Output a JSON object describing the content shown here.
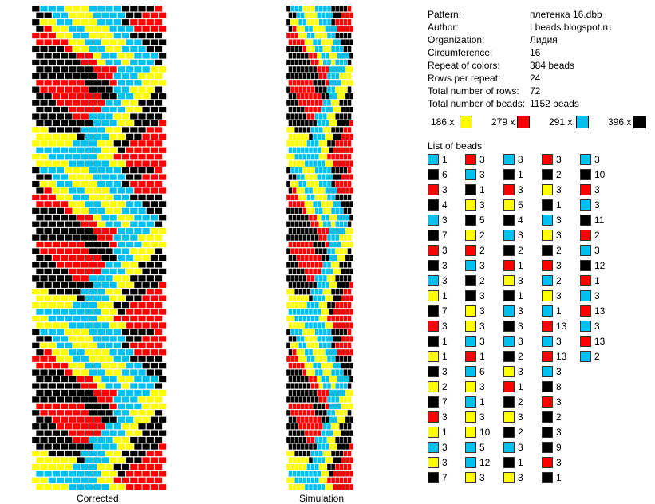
{
  "palette": {
    "Y": "#ffff00",
    "R": "#ff0000",
    "C": "#00c0f0",
    "K": "#000000"
  },
  "info": [
    {
      "label": "Pattern:",
      "value": "плетенка 16.dbb"
    },
    {
      "label": "Author:",
      "value": "Lbeads.blogspot.ru"
    },
    {
      "label": "Organization:",
      "value": "Лидия"
    },
    {
      "label": "Circumference:",
      "value": "16"
    },
    {
      "label": "Repeat of colors:",
      "value": "384 beads"
    },
    {
      "label": "Rows per repeat:",
      "value": "24"
    },
    {
      "label": "Total number of rows:",
      "value": "72"
    },
    {
      "label": "Total number of beads:",
      "value": "1152 beads"
    }
  ],
  "totals": [
    {
      "text": "186 x",
      "color": "Y"
    },
    {
      "text": "279 x",
      "color": "R"
    },
    {
      "text": "291 x",
      "color": "C"
    },
    {
      "text": "396 x",
      "color": "K"
    }
  ],
  "captions": {
    "corrected": "Corrected",
    "simulation": "Simulation"
  },
  "list_title": "List of beads",
  "bead_columns": [
    [
      [
        "C",
        1
      ],
      [
        "K",
        6
      ],
      [
        "R",
        3
      ],
      [
        "K",
        4
      ],
      [
        "C",
        3
      ],
      [
        "K",
        7
      ],
      [
        "R",
        3
      ],
      [
        "K",
        3
      ],
      [
        "C",
        3
      ],
      [
        "Y",
        1
      ],
      [
        "K",
        7
      ],
      [
        "R",
        3
      ],
      [
        "K",
        1
      ],
      [
        "Y",
        1
      ],
      [
        "K",
        3
      ],
      [
        "Y",
        2
      ],
      [
        "K",
        7
      ],
      [
        "R",
        3
      ],
      [
        "Y",
        1
      ],
      [
        "C",
        3
      ],
      [
        "Y",
        3
      ],
      [
        "K",
        7
      ]
    ],
    [
      [
        "R",
        3
      ],
      [
        "C",
        3
      ],
      [
        "K",
        1
      ],
      [
        "Y",
        3
      ],
      [
        "K",
        5
      ],
      [
        "Y",
        2
      ],
      [
        "R",
        2
      ],
      [
        "C",
        3
      ],
      [
        "K",
        2
      ],
      [
        "K",
        3
      ],
      [
        "Y",
        3
      ],
      [
        "Y",
        3
      ],
      [
        "C",
        3
      ],
      [
        "R",
        1
      ],
      [
        "C",
        6
      ],
      [
        "Y",
        3
      ],
      [
        "C",
        1
      ],
      [
        "Y",
        3
      ],
      [
        "Y",
        10
      ],
      [
        "C",
        5
      ],
      [
        "C",
        12
      ],
      [
        "Y",
        3
      ]
    ],
    [
      [
        "C",
        8
      ],
      [
        "K",
        1
      ],
      [
        "R",
        3
      ],
      [
        "Y",
        5
      ],
      [
        "K",
        4
      ],
      [
        "C",
        3
      ],
      [
        "K",
        2
      ],
      [
        "R",
        1
      ],
      [
        "Y",
        3
      ],
      [
        "K",
        1
      ],
      [
        "C",
        3
      ],
      [
        "K",
        3
      ],
      [
        "C",
        3
      ],
      [
        "K",
        2
      ],
      [
        "Y",
        3
      ],
      [
        "R",
        1
      ],
      [
        "K",
        2
      ],
      [
        "Y",
        3
      ],
      [
        "K",
        2
      ],
      [
        "C",
        3
      ],
      [
        "K",
        1
      ],
      [
        "Y",
        3
      ]
    ],
    [
      [
        "R",
        3
      ],
      [
        "K",
        2
      ],
      [
        "Y",
        3
      ],
      [
        "K",
        1
      ],
      [
        "C",
        3
      ],
      [
        "Y",
        3
      ],
      [
        "K",
        2
      ],
      [
        "R",
        3
      ],
      [
        "C",
        2
      ],
      [
        "Y",
        3
      ],
      [
        "C",
        1
      ],
      [
        "R",
        13
      ],
      [
        "C",
        3
      ],
      [
        "R",
        13
      ],
      [
        "C",
        3
      ],
      [
        "K",
        8
      ],
      [
        "R",
        3
      ],
      [
        "K",
        2
      ],
      [
        "K",
        3
      ],
      [
        "K",
        9
      ],
      [
        "R",
        3
      ],
      [
        "K",
        1
      ]
    ],
    [
      [
        "C",
        3
      ],
      [
        "K",
        10
      ],
      [
        "R",
        3
      ],
      [
        "C",
        3
      ],
      [
        "K",
        11
      ],
      [
        "R",
        2
      ],
      [
        "C",
        3
      ],
      [
        "K",
        12
      ],
      [
        "R",
        1
      ],
      [
        "C",
        3
      ],
      [
        "R",
        13
      ],
      [
        "C",
        3
      ],
      [
        "R",
        13
      ],
      [
        "C",
        2
      ]
    ]
  ],
  "rows": [
    "KCCCYYYCCCCKKKKR",
    "KKCCYYYCCCCKKRRR",
    "KYYCCYYYCCCKRRRR",
    "KRYYCCYYYCCCRRRR",
    "RRRYYCCYYYCCKKKK",
    "RRRRYYCCYYYCCKKK",
    "KKKKRYYCCYYCCCKK",
    "KKKKKRRYCCYYCCCK",
    "KKKKKKRRYCCYCCCK",
    "KKKKKKKRRRCCCCYY",
    "KKKKKKKKRRCCCYYY",
    "RRRRRRKKKRCCCYYY",
    "KRRRRRRKKKCCYYYK",
    "KKRRRRRRKKCCYYKK",
    "KKKRRRRRRCCYYKKK",
    "KKKKRRRRCCCYYKKK",
    "KKKKKRRCCCYYKKKK",
    "KKKKKKKCCCYYKKKR",
    "YYKKKKCCCYYKKKRR",
    "YYYYYKCCCYYKKRRR",
    "YYYYYCCCYYKKRRRR",
    "CCCCCCCCYYKRRRRR",
    "YYCCCCCCYYRRRRRR",
    "YYYYCCCCCYYRRRRR"
  ]
}
